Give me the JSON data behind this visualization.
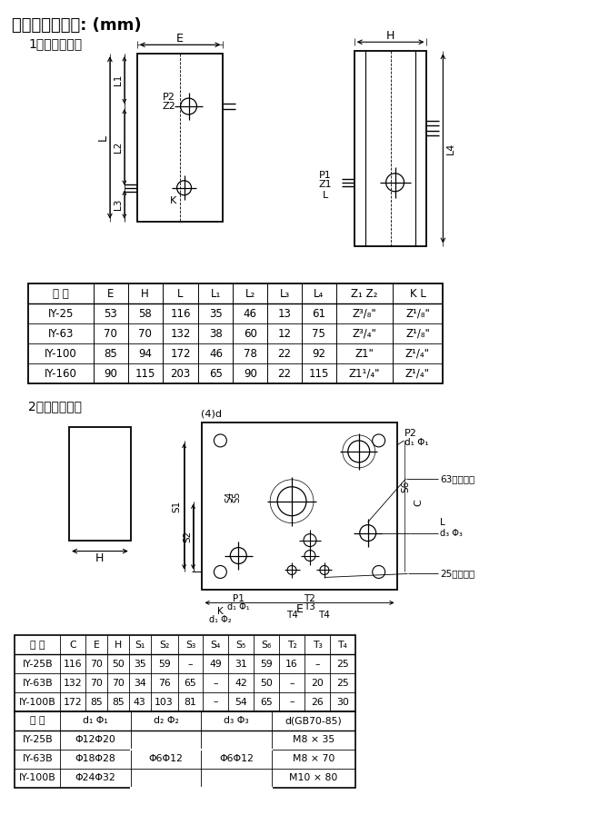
{
  "title": "外形及安装尺寸: (mm)",
  "section1": "1、螺纹连接：",
  "section2": "2、板式连接：",
  "bg_color": "#ffffff",
  "table1_headers": [
    "型 号",
    "E",
    "H",
    "L",
    "L₁",
    "L₂",
    "L₃",
    "L₄",
    "Z₁ Z₂",
    "K L"
  ],
  "table1_rows": [
    [
      "IY-25",
      "53",
      "58",
      "116",
      "35",
      "46",
      "13",
      "61",
      "Z³/₈\"",
      "Z¹/₈\""
    ],
    [
      "IY-63",
      "70",
      "70",
      "132",
      "38",
      "60",
      "12",
      "75",
      "Z³/₄\"",
      "Z¹/₈\""
    ],
    [
      "IY-100",
      "85",
      "94",
      "172",
      "46",
      "78",
      "22",
      "92",
      "Z1\"",
      "Z¹/₄\""
    ],
    [
      "IY-160",
      "90",
      "115",
      "203",
      "65",
      "90",
      "22",
      "115",
      "Z1¹/₄\"",
      "Z¹/₄\""
    ]
  ],
  "table2a_headers": [
    "型 号",
    "C",
    "E",
    "H",
    "S₁",
    "S₂",
    "S₃",
    "S₄",
    "S₅",
    "S₆",
    "T₂",
    "T₃",
    "T₄"
  ],
  "table2a_rows": [
    [
      "IY-25B",
      "116",
      "70",
      "50",
      "35",
      "59",
      "–",
      "49",
      "31",
      "59",
      "16",
      "–",
      "25"
    ],
    [
      "IY-63B",
      "132",
      "70",
      "70",
      "34",
      "76",
      "65",
      "–",
      "42",
      "50",
      "–",
      "20",
      "25"
    ],
    [
      "IY-100B",
      "172",
      "85",
      "85",
      "43",
      "103",
      "81",
      "–",
      "54",
      "65",
      "–",
      "26",
      "30"
    ]
  ],
  "table2b_headers": [
    "型 号",
    "d₁ Φ₁",
    "d₂ Φ₂",
    "d₃ Φ₃",
    "d(GB70-85)"
  ],
  "table2b_rows": [
    [
      "IY-25B",
      "Φ12Φ20",
      "",
      "",
      "M8 × 35"
    ],
    [
      "IY-63B",
      "Φ18Φ28",
      "Φ6Φ12",
      "Φ6Φ12",
      "M8 × 70"
    ],
    [
      "IY-100B",
      "Φ24Φ32",
      "",
      "",
      "M10 × 80"
    ]
  ]
}
